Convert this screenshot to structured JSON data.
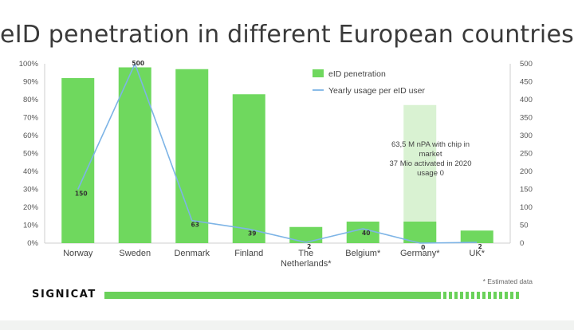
{
  "colors": {
    "bar": "#6fd85e",
    "bar_light": "#d9f2d2",
    "line": "#7db4e6",
    "axis_text": "#555555"
  },
  "chart_data": {
    "type": "bar+line",
    "title": "eID penetration in different European countries",
    "categories": [
      "Norway",
      "Sweden",
      "Denmark",
      "Finland",
      "The Netherlands*",
      "Belgium*",
      "Germany*",
      "UK*"
    ],
    "category_lines": [
      [
        "Norway"
      ],
      [
        "Sweden"
      ],
      [
        "Denmark"
      ],
      [
        "Finland"
      ],
      [
        "The",
        "Netherlands*"
      ],
      [
        "Belgium*"
      ],
      [
        "Germany*"
      ],
      [
        "UK*"
      ]
    ],
    "series": [
      {
        "name": "eID penetration",
        "type": "bar",
        "axis": "left",
        "values": [
          92,
          98,
          97,
          83,
          9,
          12,
          12,
          7
        ]
      },
      {
        "name": "Yearly usage per eID user",
        "type": "line",
        "axis": "right",
        "values": [
          150,
          500,
          63,
          39,
          2,
          40,
          0,
          2
        ]
      }
    ],
    "data_labels": [
      "150",
      "500",
      "63",
      "39",
      "2",
      "40",
      "0",
      "2"
    ],
    "highlight_bar": {
      "category": "Germany*",
      "value": 77
    },
    "annotation": [
      "63,5 M nPA with chip in",
      "market",
      "37 Mio activated in 2020",
      "usage 0"
    ],
    "y_left": {
      "min": 0,
      "max": 100,
      "ticks": [
        "0%",
        "10%",
        "20%",
        "30%",
        "40%",
        "50%",
        "60%",
        "70%",
        "80%",
        "90%",
        "100%"
      ]
    },
    "y_right": {
      "min": 0,
      "max": 500,
      "ticks": [
        "0",
        "50",
        "100",
        "150",
        "200",
        "250",
        "300",
        "350",
        "400",
        "450",
        "500"
      ]
    },
    "legend": [
      "eID penetration",
      "Yearly usage per eID user"
    ],
    "grid": false
  },
  "footer": {
    "brand": "SIGNICAT",
    "note": "* Estimated data"
  }
}
